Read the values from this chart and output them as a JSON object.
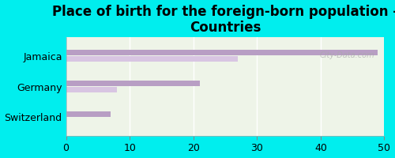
{
  "title": "Place of birth for the foreign-born population -\nCountries",
  "categories": [
    "Switzerland",
    "Germany",
    "Jamaica"
  ],
  "bar1_values": [
    7,
    21,
    49
  ],
  "bar2_values": [
    0,
    8,
    27
  ],
  "bar1_color": "#b89ec4",
  "bar2_color": "#d8c5e2",
  "background_color": "#00eeee",
  "plot_bg_color": "#eef4e8",
  "xlim": [
    0,
    50
  ],
  "xticks": [
    0,
    10,
    20,
    30,
    40,
    50
  ],
  "bar_height": 0.18,
  "title_fontsize": 12,
  "tick_fontsize": 9,
  "label_fontsize": 9,
  "watermark": "City-Data.com"
}
